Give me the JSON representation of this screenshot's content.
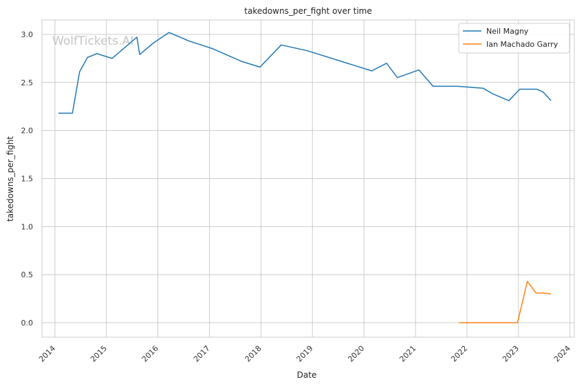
{
  "chart_data": {
    "type": "line",
    "title": "takedowns_per_fight over time",
    "xlabel": "Date",
    "ylabel": "takedowns_per_fight",
    "watermark": "WolfTickets.AI",
    "xlim": [
      "2013-10-01",
      "2024-02-01"
    ],
    "ylim": [
      -0.15,
      3.15
    ],
    "x_ticks": [
      "2014-01-01",
      "2015-01-01",
      "2016-01-01",
      "2017-01-01",
      "2018-01-01",
      "2019-01-01",
      "2020-01-01",
      "2021-01-01",
      "2022-01-01",
      "2023-01-01",
      "2024-01-01"
    ],
    "x_tick_labels": [
      "2014",
      "2015",
      "2016",
      "2017",
      "2018",
      "2019",
      "2020",
      "2021",
      "2022",
      "2023",
      "2024"
    ],
    "y_ticks": [
      0.0,
      0.5,
      1.0,
      1.5,
      2.0,
      2.5,
      3.0
    ],
    "y_tick_labels": [
      "0.0",
      "0.5",
      "1.0",
      "1.5",
      "2.0",
      "2.5",
      "3.0"
    ],
    "grid": true,
    "legend_position": "top-right",
    "series": [
      {
        "name": "Neil Magny",
        "color": "#1f77b4",
        "points": [
          [
            "2014-01-25",
            2.18
          ],
          [
            "2014-05-05",
            2.18
          ],
          [
            "2014-06-25",
            2.61
          ],
          [
            "2014-08-20",
            2.76
          ],
          [
            "2014-10-25",
            2.8
          ],
          [
            "2015-02-10",
            2.75
          ],
          [
            "2015-08-05",
            2.97
          ],
          [
            "2015-08-25",
            2.79
          ],
          [
            "2015-11-30",
            2.91
          ],
          [
            "2016-03-20",
            3.02
          ],
          [
            "2016-08-10",
            2.93
          ],
          [
            "2017-01-25",
            2.85
          ],
          [
            "2017-08-15",
            2.72
          ],
          [
            "2017-12-25",
            2.66
          ],
          [
            "2018-05-25",
            2.89
          ],
          [
            "2018-11-25",
            2.83
          ],
          [
            "2020-02-25",
            2.62
          ],
          [
            "2020-06-10",
            2.7
          ],
          [
            "2020-08-25",
            2.55
          ],
          [
            "2021-01-25",
            2.63
          ],
          [
            "2021-05-05",
            2.46
          ],
          [
            "2021-10-25",
            2.46
          ],
          [
            "2022-04-25",
            2.44
          ],
          [
            "2022-07-05",
            2.38
          ],
          [
            "2022-10-25",
            2.31
          ],
          [
            "2023-01-10",
            2.43
          ],
          [
            "2023-05-10",
            2.43
          ],
          [
            "2023-06-25",
            2.4
          ],
          [
            "2023-08-20",
            2.31
          ]
        ]
      },
      {
        "name": "Ian Machado Garry",
        "color": "#ff7f0e",
        "points": [
          [
            "2021-11-05",
            0.0
          ],
          [
            "2022-12-25",
            0.0
          ],
          [
            "2023-03-05",
            0.43
          ],
          [
            "2023-05-05",
            0.31
          ],
          [
            "2023-06-15",
            0.31
          ],
          [
            "2023-08-20",
            0.3
          ]
        ]
      }
    ]
  }
}
